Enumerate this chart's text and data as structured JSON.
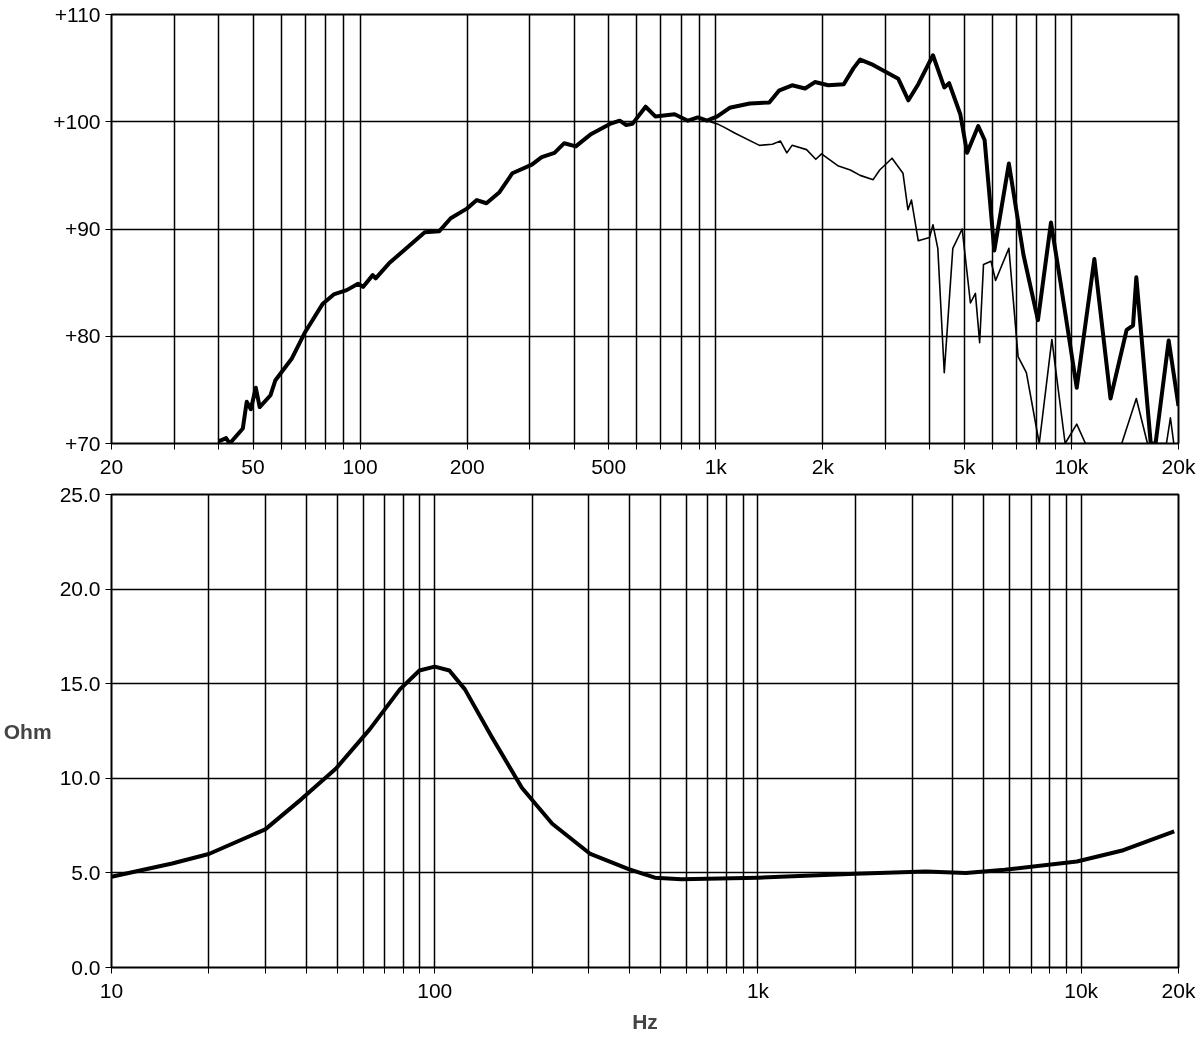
{
  "chart_data": [
    {
      "type": "line",
      "log": "x",
      "grid": true,
      "xlim": [
        20,
        20000
      ],
      "ylim": [
        70,
        110
      ],
      "xticks": [
        20,
        {
          "value": 30,
          "label": null
        },
        {
          "value": 40,
          "label": null
        },
        50,
        {
          "value": 60,
          "label": null
        },
        {
          "value": 70,
          "label": null
        },
        {
          "value": 80,
          "label": null
        },
        {
          "value": 90,
          "label": null
        },
        100,
        200,
        {
          "value": 300,
          "label": null
        },
        {
          "value": 400,
          "label": null
        },
        500,
        {
          "value": 600,
          "label": null
        },
        {
          "value": 700,
          "label": null
        },
        {
          "value": 800,
          "label": null
        },
        {
          "value": 900,
          "label": null
        },
        {
          "value": 1000,
          "label": "1k"
        },
        {
          "value": 2000,
          "label": "2k"
        },
        {
          "value": 3000,
          "label": null
        },
        {
          "value": 4000,
          "label": null
        },
        {
          "value": 5000,
          "label": "5k"
        },
        {
          "value": 6000,
          "label": null
        },
        {
          "value": 7000,
          "label": null
        },
        {
          "value": 8000,
          "label": null
        },
        {
          "value": 9000,
          "label": null
        },
        {
          "value": 10000,
          "label": "10k"
        },
        {
          "value": 20000,
          "label": "20k"
        }
      ],
      "yticks": [
        {
          "value": 70,
          "label": "+70"
        },
        {
          "value": 80,
          "label": "+80"
        },
        {
          "value": 90,
          "label": "+90"
        },
        {
          "value": 100,
          "label": "+100"
        },
        {
          "value": 110,
          "label": "+110"
        }
      ],
      "series": [
        {
          "color": "#000000",
          "x": [
            40,
            42,
            43,
            46.8,
            48,
            49.3,
            50.9,
            52.2,
            56,
            57.8,
            64.2,
            69.8,
            78.4,
            84.3,
            91.7,
            98.7,
            101.9,
            108.5,
            110.6,
            120.6,
            152,
            167,
            179.8,
            199.6,
            212.9,
            226.6,
            246,
            268,
            304,
            324,
            352,
            375,
            404,
            444,
            504,
            537,
            560,
            583,
            635,
            676,
            766,
            835,
            890,
            945,
            1010,
            1094,
            1246,
            1414,
            1505,
            1639,
            1783,
            1900,
            2070,
            2290,
            2440,
            2547,
            2770,
            3260,
            3480,
            3710,
            4080,
            4390,
            4530,
            4870,
            5090,
            5470,
            5700,
            6070,
            6670,
            7330,
            8050,
            8760,
            9330,
            10350,
            11600,
            12880,
            14300,
            14900,
            15220,
            16710,
            17240,
            18770,
            20000
          ],
          "values": [
            70.2,
            70.5,
            70,
            71.4,
            73.9,
            73.2,
            75.2,
            73.4,
            74.5,
            75.9,
            77.9,
            80.3,
            83,
            83.9,
            84.3,
            84.9,
            84.6,
            85.7,
            85.4,
            86.8,
            89.7,
            89.8,
            91,
            91.9,
            92.7,
            92.4,
            93.4,
            95.2,
            96,
            96.7,
            97.1,
            98,
            97.7,
            98.8,
            99.8,
            100.1,
            99.7,
            99.8,
            101.4,
            100.5,
            100.7,
            100.1,
            100.4,
            100.1,
            100.5,
            101.3,
            101.7,
            101.8,
            102.9,
            103.4,
            103.1,
            103.7,
            103.4,
            103.5,
            105,
            105.8,
            105.3,
            104,
            102,
            103.5,
            106.2,
            103.2,
            103.6,
            100.7,
            97.1,
            99.6,
            98.3,
            88,
            96.1,
            87.6,
            81.5,
            90.6,
            84.9,
            75.2,
            87.2,
            74.2,
            80.6,
            81,
            85.5,
            70,
            70,
            79.6,
            73.5
          ]
        },
        {
          "color": "#000000",
          "x": [
            835,
            890,
            945,
            1010,
            1054,
            1137,
            1327,
            1442,
            1520,
            1584,
            1639,
            1800,
            1911,
            1983,
            2203,
            2390,
            2547,
            2770,
            2890,
            3130,
            3360,
            3470,
            3550,
            3710,
            3990,
            4080,
            4210,
            4390,
            4640,
            4930,
            5200,
            5370,
            5520,
            5660,
            5940,
            6120,
            6670,
            7080,
            7470,
            8120,
            8810,
            9600,
            10350,
            10950,
            13850,
            15220,
            16360,
            18500,
            18980,
            19400
          ],
          "values": [
            100.1,
            100.4,
            100.1,
            99.8,
            99.5,
            98.9,
            97.8,
            97.9,
            98.2,
            97.1,
            97.8,
            97.4,
            96.5,
            97,
            95.9,
            95.5,
            95,
            94.6,
            95.5,
            96.6,
            95.2,
            91.8,
            92.7,
            88.9,
            89.2,
            90.4,
            88.2,
            76.6,
            88.2,
            90,
            83.1,
            84,
            79.4,
            86.7,
            87,
            85.2,
            88.2,
            78.1,
            76.6,
            70,
            79.7,
            70,
            71.8,
            70,
            70,
            74.2,
            70,
            70,
            72.4,
            70
          ]
        }
      ]
    },
    {
      "type": "line",
      "log": "x",
      "grid": true,
      "xlabel": "Hz",
      "ylabel": "Ohm",
      "xlim": [
        10,
        20000
      ],
      "ylim": [
        0,
        25
      ],
      "xticks": [
        10,
        {
          "value": 20,
          "label": null
        },
        {
          "value": 30,
          "label": null
        },
        {
          "value": 40,
          "label": null
        },
        {
          "value": 50,
          "label": null
        },
        {
          "value": 60,
          "label": null
        },
        {
          "value": 70,
          "label": null
        },
        {
          "value": 80,
          "label": null
        },
        {
          "value": 90,
          "label": null
        },
        100,
        {
          "value": 200,
          "label": null
        },
        {
          "value": 300,
          "label": null
        },
        {
          "value": 400,
          "label": null
        },
        {
          "value": 500,
          "label": null
        },
        {
          "value": 600,
          "label": null
        },
        {
          "value": 700,
          "label": null
        },
        {
          "value": 800,
          "label": null
        },
        {
          "value": 900,
          "label": null
        },
        {
          "value": 1000,
          "label": "1k"
        },
        {
          "value": 2000,
          "label": null
        },
        {
          "value": 3000,
          "label": null
        },
        {
          "value": 4000,
          "label": null
        },
        {
          "value": 5000,
          "label": null
        },
        {
          "value": 6000,
          "label": null
        },
        {
          "value": 7000,
          "label": null
        },
        {
          "value": 8000,
          "label": null
        },
        {
          "value": 9000,
          "label": null
        },
        {
          "value": 10000,
          "label": "10k"
        },
        {
          "value": 20000,
          "label": "20k"
        }
      ],
      "yticks": [
        {
          "value": 0,
          "label": "0.0"
        },
        {
          "value": 5,
          "label": "5.0"
        },
        {
          "value": 10,
          "label": "10.0"
        },
        {
          "value": 15,
          "label": "15.0"
        },
        {
          "value": 20,
          "label": "20.0"
        },
        {
          "value": 25,
          "label": "25.0"
        }
      ],
      "series": [
        {
          "color": "#000000",
          "x": [
            10,
            15.4,
            20,
            29.9,
            38.7,
            49.4,
            63,
            78,
            89.7,
            100,
            111,
            124,
            150,
            186,
            231,
            303,
            398,
            480,
            580,
            1000,
            2000,
            3300,
            4400,
            5800,
            9700,
            13500,
            19400
          ],
          "values": [
            4.8,
            5.5,
            6.0,
            7.3,
            8.9,
            10.5,
            12.6,
            14.7,
            15.7,
            15.9,
            15.7,
            14.7,
            12.2,
            9.5,
            7.6,
            6.0,
            5.2,
            4.75,
            4.67,
            4.75,
            4.96,
            5.08,
            5.0,
            5.17,
            5.6,
            6.2,
            7.2
          ]
        }
      ]
    }
  ]
}
